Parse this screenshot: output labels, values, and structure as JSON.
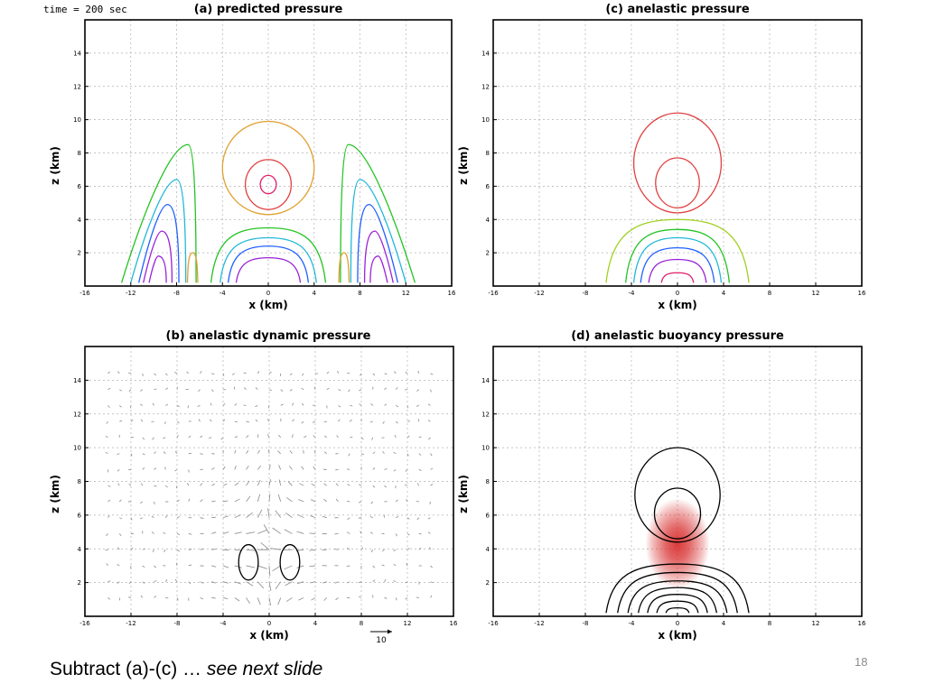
{
  "header": {
    "time_label": "time = 200 sec"
  },
  "caption": {
    "text_main": "Subtract (a)-(c) … ",
    "text_italic": "see next slide"
  },
  "page_number": "18",
  "colors": {
    "contour_orange": "#e0a030",
    "contour_red": "#e04040",
    "contour_magenta": "#e0206a",
    "contour_green": "#22c322",
    "contour_cyan": "#20b8d8",
    "contour_blue": "#2060ff",
    "contour_purple": "#9a22d8",
    "contour_yellowgreen": "#a0d020",
    "contour_black": "#000000",
    "vector_gray": "#8a8a8a",
    "shading_red": "#d83030",
    "grid_gray": "#b0b0b0"
  },
  "chart_data": [
    {
      "id": "a",
      "type": "contour",
      "title": "(a)  predicted pressure",
      "xlabel": "x (km)",
      "ylabel": "z (km)",
      "xlim": [
        -16,
        16
      ],
      "ylim": [
        0,
        16
      ],
      "xticks": [
        -16,
        -12,
        -8,
        -4,
        0,
        4,
        8,
        12,
        16
      ],
      "yticks": [
        2,
        4,
        6,
        8,
        10,
        12,
        14
      ],
      "grid": true,
      "contours": [
        {
          "shape": "ellipse",
          "color": "contour_orange",
          "cx": 0,
          "cz": 7.1,
          "rx": 4.0,
          "rz": 2.8
        },
        {
          "shape": "ellipse",
          "color": "contour_red",
          "cx": 0,
          "cz": 6.1,
          "rx": 2.0,
          "rz": 1.5
        },
        {
          "shape": "ellipse",
          "color": "contour_magenta",
          "cx": 0,
          "cz": 6.1,
          "rx": 0.7,
          "rz": 0.55
        },
        {
          "shape": "dome",
          "color": "contour_green",
          "cx": 0,
          "base": 0.2,
          "rx": 5.0,
          "top": 3.5
        },
        {
          "shape": "dome",
          "color": "contour_cyan",
          "cx": 0,
          "base": 0.2,
          "rx": 4.2,
          "top": 2.9
        },
        {
          "shape": "dome",
          "color": "contour_blue",
          "cx": 0,
          "base": 0.2,
          "rx": 3.5,
          "top": 2.4
        },
        {
          "shape": "dome",
          "color": "contour_purple",
          "cx": 0,
          "base": 0.2,
          "rx": 2.8,
          "top": 1.7
        },
        {
          "shape": "lobe",
          "color": "contour_green",
          "x_in": -6.3,
          "x_out": -12.8,
          "x_top": -7.0,
          "top": 8.5
        },
        {
          "shape": "lobe",
          "color": "contour_cyan",
          "x_in": -7.2,
          "x_out": -12.0,
          "x_top": -8.0,
          "top": 6.4
        },
        {
          "shape": "lobe",
          "color": "contour_blue",
          "x_in": -7.8,
          "x_out": -11.3,
          "x_top": -8.8,
          "top": 4.9
        },
        {
          "shape": "lobe",
          "color": "contour_purple",
          "x_in": -8.4,
          "x_out": -10.9,
          "x_top": -9.3,
          "top": 3.3
        },
        {
          "shape": "lobe",
          "color": "contour_purple",
          "x_in": -8.9,
          "x_out": -10.4,
          "x_top": -9.6,
          "top": 1.8
        },
        {
          "shape": "lobe",
          "color": "contour_green",
          "x_in": 6.3,
          "x_out": 12.8,
          "x_top": 7.0,
          "top": 8.5
        },
        {
          "shape": "lobe",
          "color": "contour_cyan",
          "x_in": 7.2,
          "x_out": 12.0,
          "x_top": 8.0,
          "top": 6.4
        },
        {
          "shape": "lobe",
          "color": "contour_blue",
          "x_in": 7.8,
          "x_out": 11.3,
          "x_top": 8.8,
          "top": 4.9
        },
        {
          "shape": "lobe",
          "color": "contour_purple",
          "x_in": 8.4,
          "x_out": 10.9,
          "x_top": 9.3,
          "top": 3.3
        },
        {
          "shape": "lobe",
          "color": "contour_purple",
          "x_in": 8.9,
          "x_out": 10.4,
          "x_top": 9.6,
          "top": 1.8
        },
        {
          "shape": "dome",
          "color": "contour_orange",
          "cx": -6.6,
          "base": 0.2,
          "rx": 0.45,
          "top": 2.0
        },
        {
          "shape": "dome",
          "color": "contour_orange",
          "cx": 6.6,
          "base": 0.2,
          "rx": 0.45,
          "top": 2.0
        }
      ]
    },
    {
      "id": "c",
      "type": "contour",
      "title": "(c)  anelastic pressure",
      "xlabel": "x (km)",
      "ylabel": "z (km)",
      "xlim": [
        -16,
        16
      ],
      "ylim": [
        0,
        16
      ],
      "xticks": [
        -16,
        -12,
        -8,
        -4,
        0,
        4,
        8,
        12,
        16
      ],
      "yticks": [
        2,
        4,
        6,
        8,
        10,
        12,
        14
      ],
      "grid": true,
      "contours": [
        {
          "shape": "ellipse",
          "color": "contour_red",
          "cx": 0,
          "cz": 7.4,
          "rx": 3.8,
          "rz": 3.0
        },
        {
          "shape": "ellipse",
          "color": "contour_red",
          "cx": 0,
          "cz": 6.2,
          "rx": 1.9,
          "rz": 1.5
        },
        {
          "shape": "dome",
          "color": "contour_yellowgreen",
          "cx": 0,
          "base": 0.2,
          "rx": 6.2,
          "top": 4.0
        },
        {
          "shape": "dome",
          "color": "contour_green",
          "cx": 0,
          "base": 0.2,
          "rx": 4.5,
          "top": 3.4
        },
        {
          "shape": "dome",
          "color": "contour_cyan",
          "cx": 0,
          "base": 0.2,
          "rx": 3.8,
          "top": 2.9
        },
        {
          "shape": "dome",
          "color": "contour_blue",
          "cx": 0,
          "base": 0.2,
          "rx": 3.2,
          "top": 2.3
        },
        {
          "shape": "dome",
          "color": "contour_purple",
          "cx": 0,
          "base": 0.2,
          "rx": 2.5,
          "top": 1.6
        },
        {
          "shape": "dome",
          "color": "contour_magenta",
          "cx": 0,
          "base": 0.2,
          "rx": 1.4,
          "top": 0.8
        }
      ]
    },
    {
      "id": "b",
      "type": "contour",
      "title": "(b)  anelastic dynamic pressure",
      "xlabel": "x (km)",
      "ylabel": "z (km)",
      "xlim": [
        -16,
        16
      ],
      "ylim": [
        0,
        16
      ],
      "xticks": [
        -16,
        -12,
        -8,
        -4,
        0,
        4,
        8,
        12,
        16
      ],
      "yticks": [
        2,
        4,
        6,
        8,
        10,
        12,
        14
      ],
      "grid": true,
      "vector_scale_label": "10",
      "contours": [
        {
          "shape": "ellipse",
          "color": "contour_black",
          "cx": -1.8,
          "cz": 3.2,
          "rx": 0.85,
          "rz": 1.05
        },
        {
          "shape": "ellipse",
          "color": "contour_black",
          "cx": 1.8,
          "cz": 3.2,
          "rx": 0.85,
          "rz": 1.05
        }
      ]
    },
    {
      "id": "d",
      "type": "contour",
      "title": "(d)  anelastic buoyancy pressure",
      "xlabel": "x (km)",
      "ylabel": "z (km)",
      "xlim": [
        -16,
        16
      ],
      "ylim": [
        0,
        16
      ],
      "xticks": [
        -16,
        -12,
        -8,
        -4,
        0,
        4,
        8,
        12,
        16
      ],
      "yticks": [
        2,
        4,
        6,
        8,
        10,
        12,
        14
      ],
      "grid": true,
      "shading": {
        "color": "shading_red",
        "cx": 0,
        "cz": 4.3,
        "rx": 2.8,
        "rz": 2.7
      },
      "contours": [
        {
          "shape": "ellipse",
          "color": "contour_black",
          "cx": 0,
          "cz": 7.2,
          "rx": 3.7,
          "rz": 2.8
        },
        {
          "shape": "ellipse",
          "color": "contour_black",
          "cx": 0,
          "cz": 6.1,
          "rx": 2.0,
          "rz": 1.5
        },
        {
          "shape": "dome",
          "color": "contour_black",
          "cx": 0,
          "base": 0.2,
          "rx": 6.2,
          "top": 3.1
        },
        {
          "shape": "dome",
          "color": "contour_black",
          "cx": 0,
          "base": 0.2,
          "rx": 5.2,
          "top": 2.6
        },
        {
          "shape": "dome",
          "color": "contour_black",
          "cx": 0,
          "base": 0.2,
          "rx": 4.3,
          "top": 2.1
        },
        {
          "shape": "dome",
          "color": "contour_black",
          "cx": 0,
          "base": 0.2,
          "rx": 3.4,
          "top": 1.7
        },
        {
          "shape": "dome",
          "color": "contour_black",
          "cx": 0,
          "base": 0.2,
          "rx": 2.6,
          "top": 1.3
        },
        {
          "shape": "dome",
          "color": "contour_black",
          "cx": 0,
          "base": 0.2,
          "rx": 1.8,
          "top": 0.9
        },
        {
          "shape": "dome",
          "color": "contour_black",
          "cx": 0,
          "base": 0.2,
          "rx": 1.0,
          "top": 0.5
        }
      ]
    }
  ]
}
